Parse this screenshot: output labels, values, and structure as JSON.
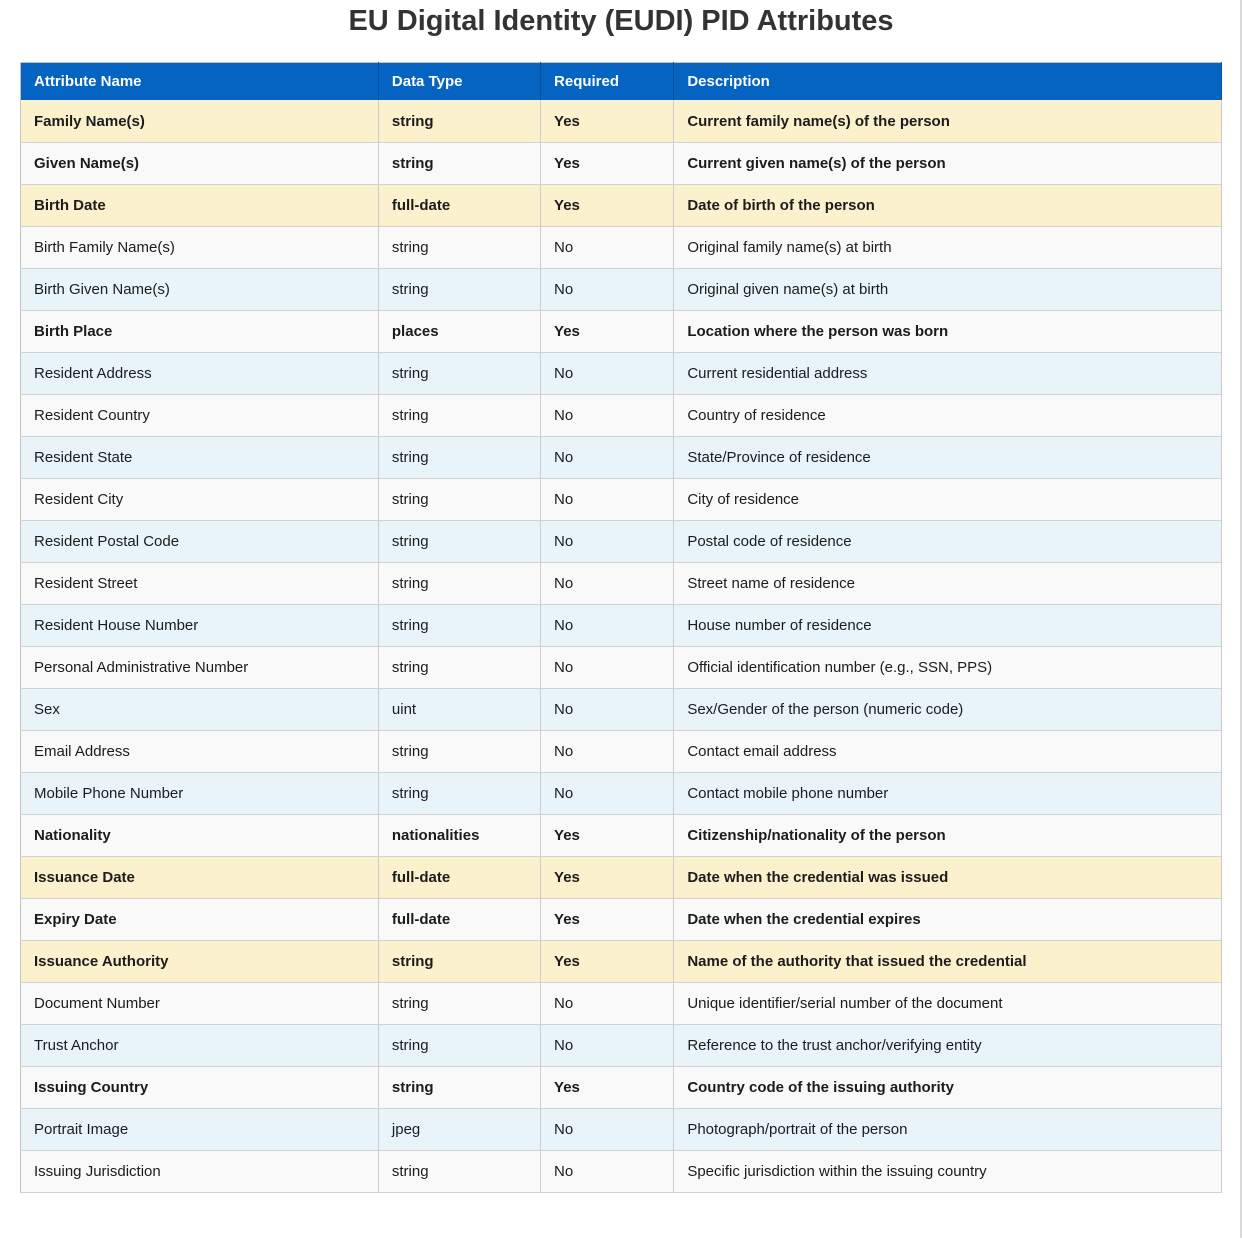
{
  "title": "EU Digital Identity (EUDI) PID Attributes",
  "colors": {
    "header_bg": "#0563c1",
    "header_text": "#ffffff",
    "required_highlight": "#fcf1cd",
    "alt_row_blue": "#e8f4f9",
    "alt_row_gray": "#f9f9f9",
    "border": "#cccccc",
    "text": "#1c1c1c",
    "title": "#333333"
  },
  "table": {
    "columns": [
      "Attribute Name",
      "Data Type",
      "Required",
      "Description"
    ],
    "rows": [
      {
        "name": "Family Name(s)",
        "type": "string",
        "required": "Yes",
        "description": "Current family name(s) of the person",
        "bold": true,
        "bg": "yellow"
      },
      {
        "name": "Given Name(s)",
        "type": "string",
        "required": "Yes",
        "description": "Current given name(s) of the person",
        "bold": true,
        "bg": "gray"
      },
      {
        "name": "Birth Date",
        "type": "full-date",
        "required": "Yes",
        "description": "Date of birth of the person",
        "bold": true,
        "bg": "yellow"
      },
      {
        "name": "Birth Family Name(s)",
        "type": "string",
        "required": "No",
        "description": "Original family name(s) at birth",
        "bold": false,
        "bg": "gray"
      },
      {
        "name": "Birth Given Name(s)",
        "type": "string",
        "required": "No",
        "description": "Original given name(s) at birth",
        "bold": false,
        "bg": "blue"
      },
      {
        "name": "Birth Place",
        "type": "places",
        "required": "Yes",
        "description": "Location where the person was born",
        "bold": true,
        "bg": "gray"
      },
      {
        "name": "Resident Address",
        "type": "string",
        "required": "No",
        "description": "Current residential address",
        "bold": false,
        "bg": "blue"
      },
      {
        "name": "Resident Country",
        "type": "string",
        "required": "No",
        "description": "Country of residence",
        "bold": false,
        "bg": "gray"
      },
      {
        "name": "Resident State",
        "type": "string",
        "required": "No",
        "description": "State/Province of residence",
        "bold": false,
        "bg": "blue"
      },
      {
        "name": "Resident City",
        "type": "string",
        "required": "No",
        "description": "City of residence",
        "bold": false,
        "bg": "gray"
      },
      {
        "name": "Resident Postal Code",
        "type": "string",
        "required": "No",
        "description": "Postal code of residence",
        "bold": false,
        "bg": "blue"
      },
      {
        "name": "Resident Street",
        "type": "string",
        "required": "No",
        "description": "Street name of residence",
        "bold": false,
        "bg": "gray"
      },
      {
        "name": "Resident House Number",
        "type": "string",
        "required": "No",
        "description": "House number of residence",
        "bold": false,
        "bg": "blue"
      },
      {
        "name": "Personal Administrative Number",
        "type": "string",
        "required": "No",
        "description": "Official identification number (e.g., SSN, PPS)",
        "bold": false,
        "bg": "gray"
      },
      {
        "name": "Sex",
        "type": "uint",
        "required": "No",
        "description": "Sex/Gender of the person (numeric code)",
        "bold": false,
        "bg": "blue"
      },
      {
        "name": "Email Address",
        "type": "string",
        "required": "No",
        "description": "Contact email address",
        "bold": false,
        "bg": "gray"
      },
      {
        "name": "Mobile Phone Number",
        "type": "string",
        "required": "No",
        "description": "Contact mobile phone number",
        "bold": false,
        "bg": "blue"
      },
      {
        "name": "Nationality",
        "type": "nationalities",
        "required": "Yes",
        "description": "Citizenship/nationality of the person",
        "bold": true,
        "bg": "gray"
      },
      {
        "name": "Issuance Date",
        "type": "full-date",
        "required": "Yes",
        "description": "Date when the credential was issued",
        "bold": true,
        "bg": "yellow"
      },
      {
        "name": "Expiry Date",
        "type": "full-date",
        "required": "Yes",
        "description": "Date when the credential expires",
        "bold": true,
        "bg": "gray"
      },
      {
        "name": "Issuance Authority",
        "type": "string",
        "required": "Yes",
        "description": "Name of the authority that issued the credential",
        "bold": true,
        "bg": "yellow"
      },
      {
        "name": "Document Number",
        "type": "string",
        "required": "No",
        "description": "Unique identifier/serial number of the document",
        "bold": false,
        "bg": "gray"
      },
      {
        "name": "Trust Anchor",
        "type": "string",
        "required": "No",
        "description": "Reference to the trust anchor/verifying entity",
        "bold": false,
        "bg": "blue"
      },
      {
        "name": "Issuing Country",
        "type": "string",
        "required": "Yes",
        "description": "Country code of the issuing authority",
        "bold": true,
        "bg": "gray"
      },
      {
        "name": "Portrait Image",
        "type": "jpeg",
        "required": "No",
        "description": "Photograph/portrait of the person",
        "bold": false,
        "bg": "blue"
      },
      {
        "name": "Issuing Jurisdiction",
        "type": "string",
        "required": "No",
        "description": "Specific jurisdiction within the issuing country",
        "bold": false,
        "bg": "gray"
      }
    ]
  }
}
